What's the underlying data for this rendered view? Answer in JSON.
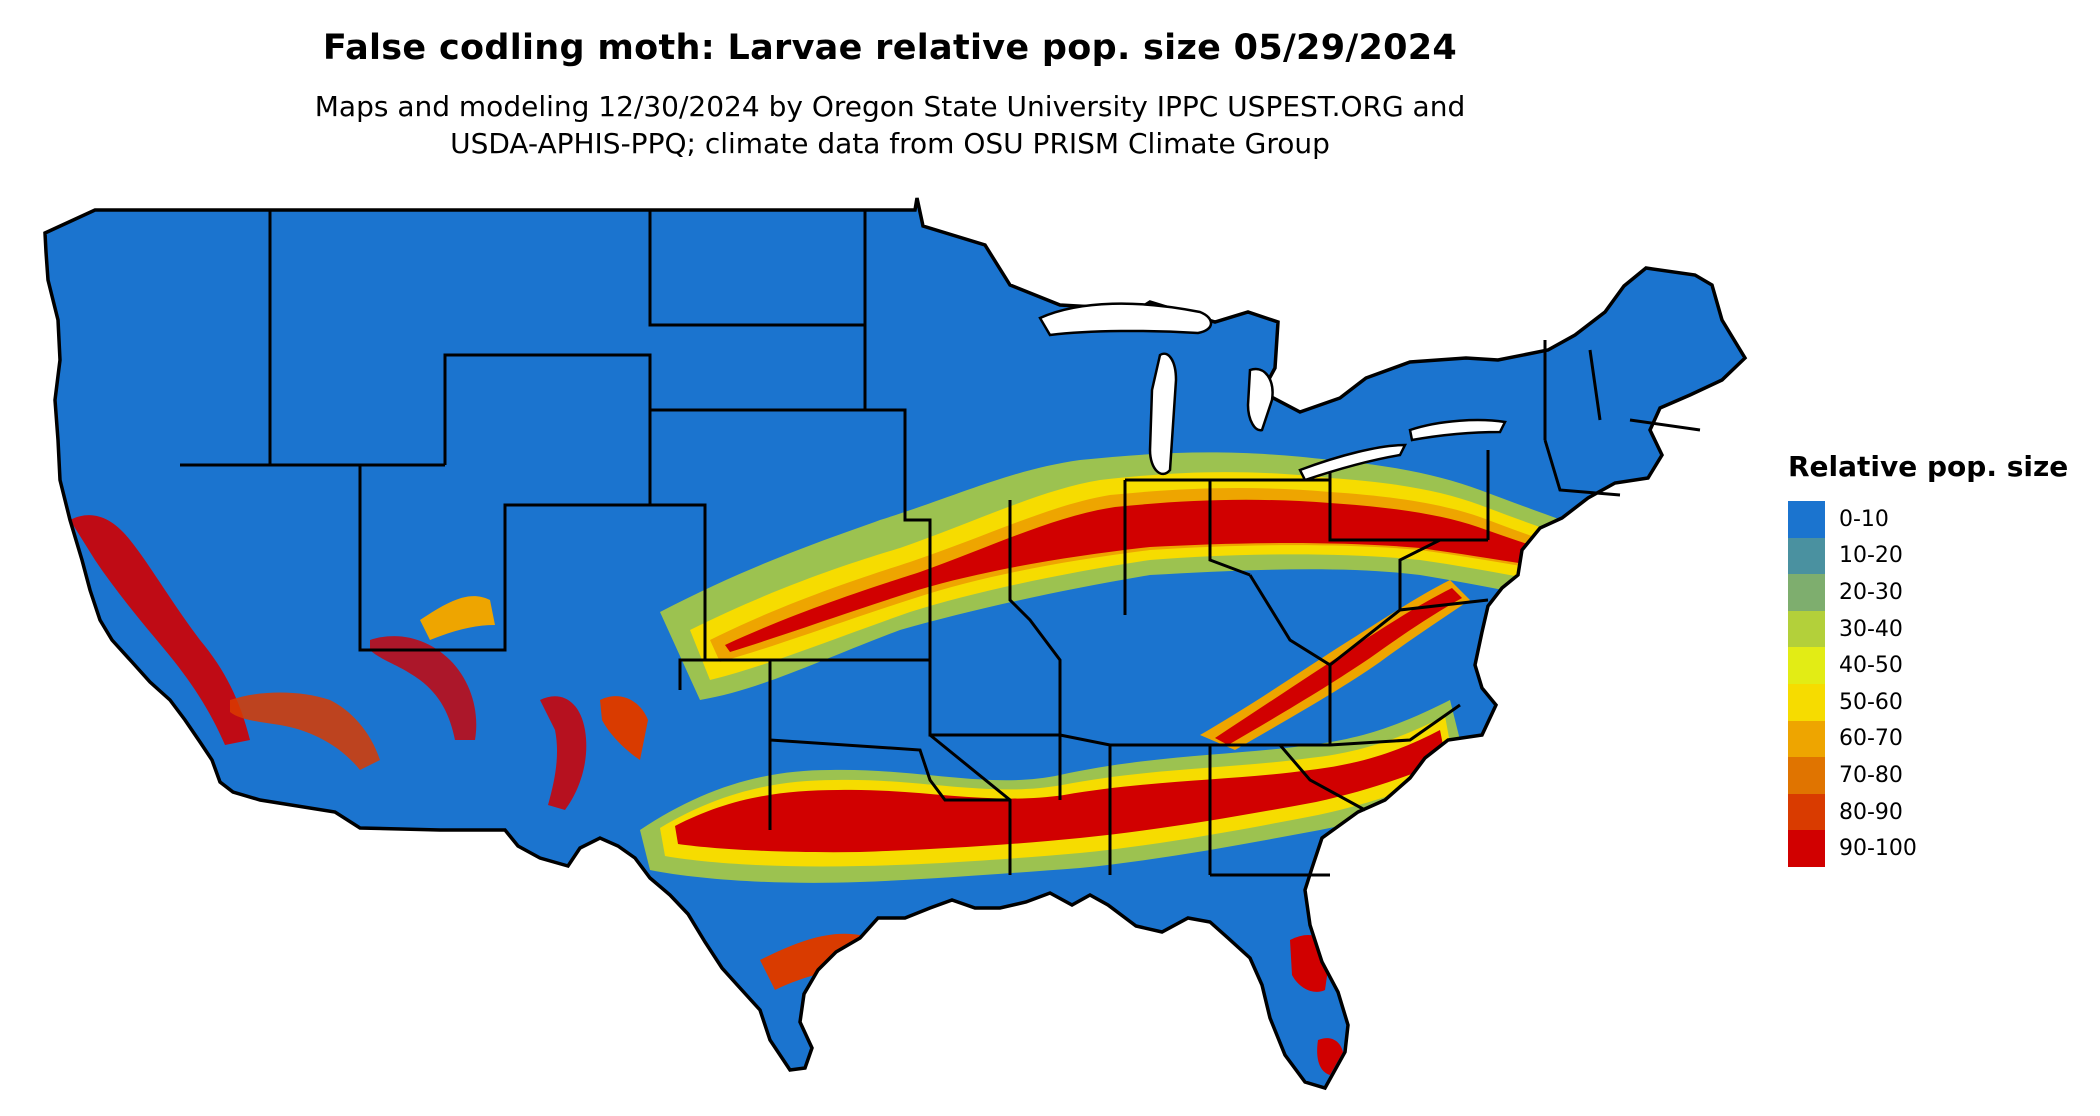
{
  "title": "False codling moth: Larvae relative pop. size 05/29/2024",
  "subtitle_lines": [
    "Maps and modeling 12/30/2024 by Oregon State University IPPC USPEST.ORG and",
    "USDA-APHIS-PPQ; climate data from OSU PRISM Climate Group"
  ],
  "map": {
    "region": "Contiguous United States",
    "background_class_color": "#1b74cf",
    "border_color": "#000000"
  },
  "legend": {
    "title": "Relative pop. size",
    "items": [
      {
        "label": "0-10",
        "color": "#1b74cf"
      },
      {
        "label": "10-20",
        "color": "#4a91a0"
      },
      {
        "label": "20-30",
        "color": "#7eae6e"
      },
      {
        "label": "30-40",
        "color": "#b3d03a"
      },
      {
        "label": "40-50",
        "color": "#e2ec15"
      },
      {
        "label": "50-60",
        "color": "#f6dc00"
      },
      {
        "label": "60-70",
        "color": "#eea500"
      },
      {
        "label": "70-80",
        "color": "#e07400"
      },
      {
        "label": "80-90",
        "color": "#d93b00"
      },
      {
        "label": "90-100",
        "color": "#d10000"
      }
    ]
  }
}
